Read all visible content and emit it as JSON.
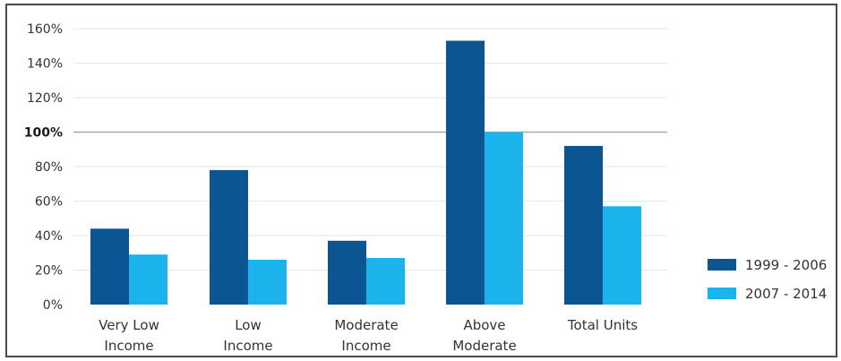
{
  "chart_data": {
    "type": "bar",
    "categories": [
      [
        "Very Low",
        "Income"
      ],
      [
        "Low",
        "Income"
      ],
      [
        "Moderate",
        "Income"
      ],
      [
        "Above",
        "Moderate"
      ],
      [
        "Total Units"
      ]
    ],
    "series": [
      {
        "name": "1999 - 2006",
        "color": "#0b5592",
        "values": [
          44,
          78,
          37,
          153,
          92
        ]
      },
      {
        "name": "2007 - 2014",
        "color": "#1ab3ec",
        "values": [
          29,
          26,
          27,
          100,
          57
        ]
      }
    ],
    "yticks": [
      "0%",
      "20%",
      "40%",
      "60%",
      "80%",
      "100%",
      "120%",
      "140%",
      "160%"
    ],
    "ytick_values": [
      0,
      20,
      40,
      60,
      80,
      100,
      120,
      140,
      160
    ],
    "ylim": [
      0,
      160
    ],
    "reference_line": 100,
    "grid": true,
    "legend_position": "right"
  }
}
